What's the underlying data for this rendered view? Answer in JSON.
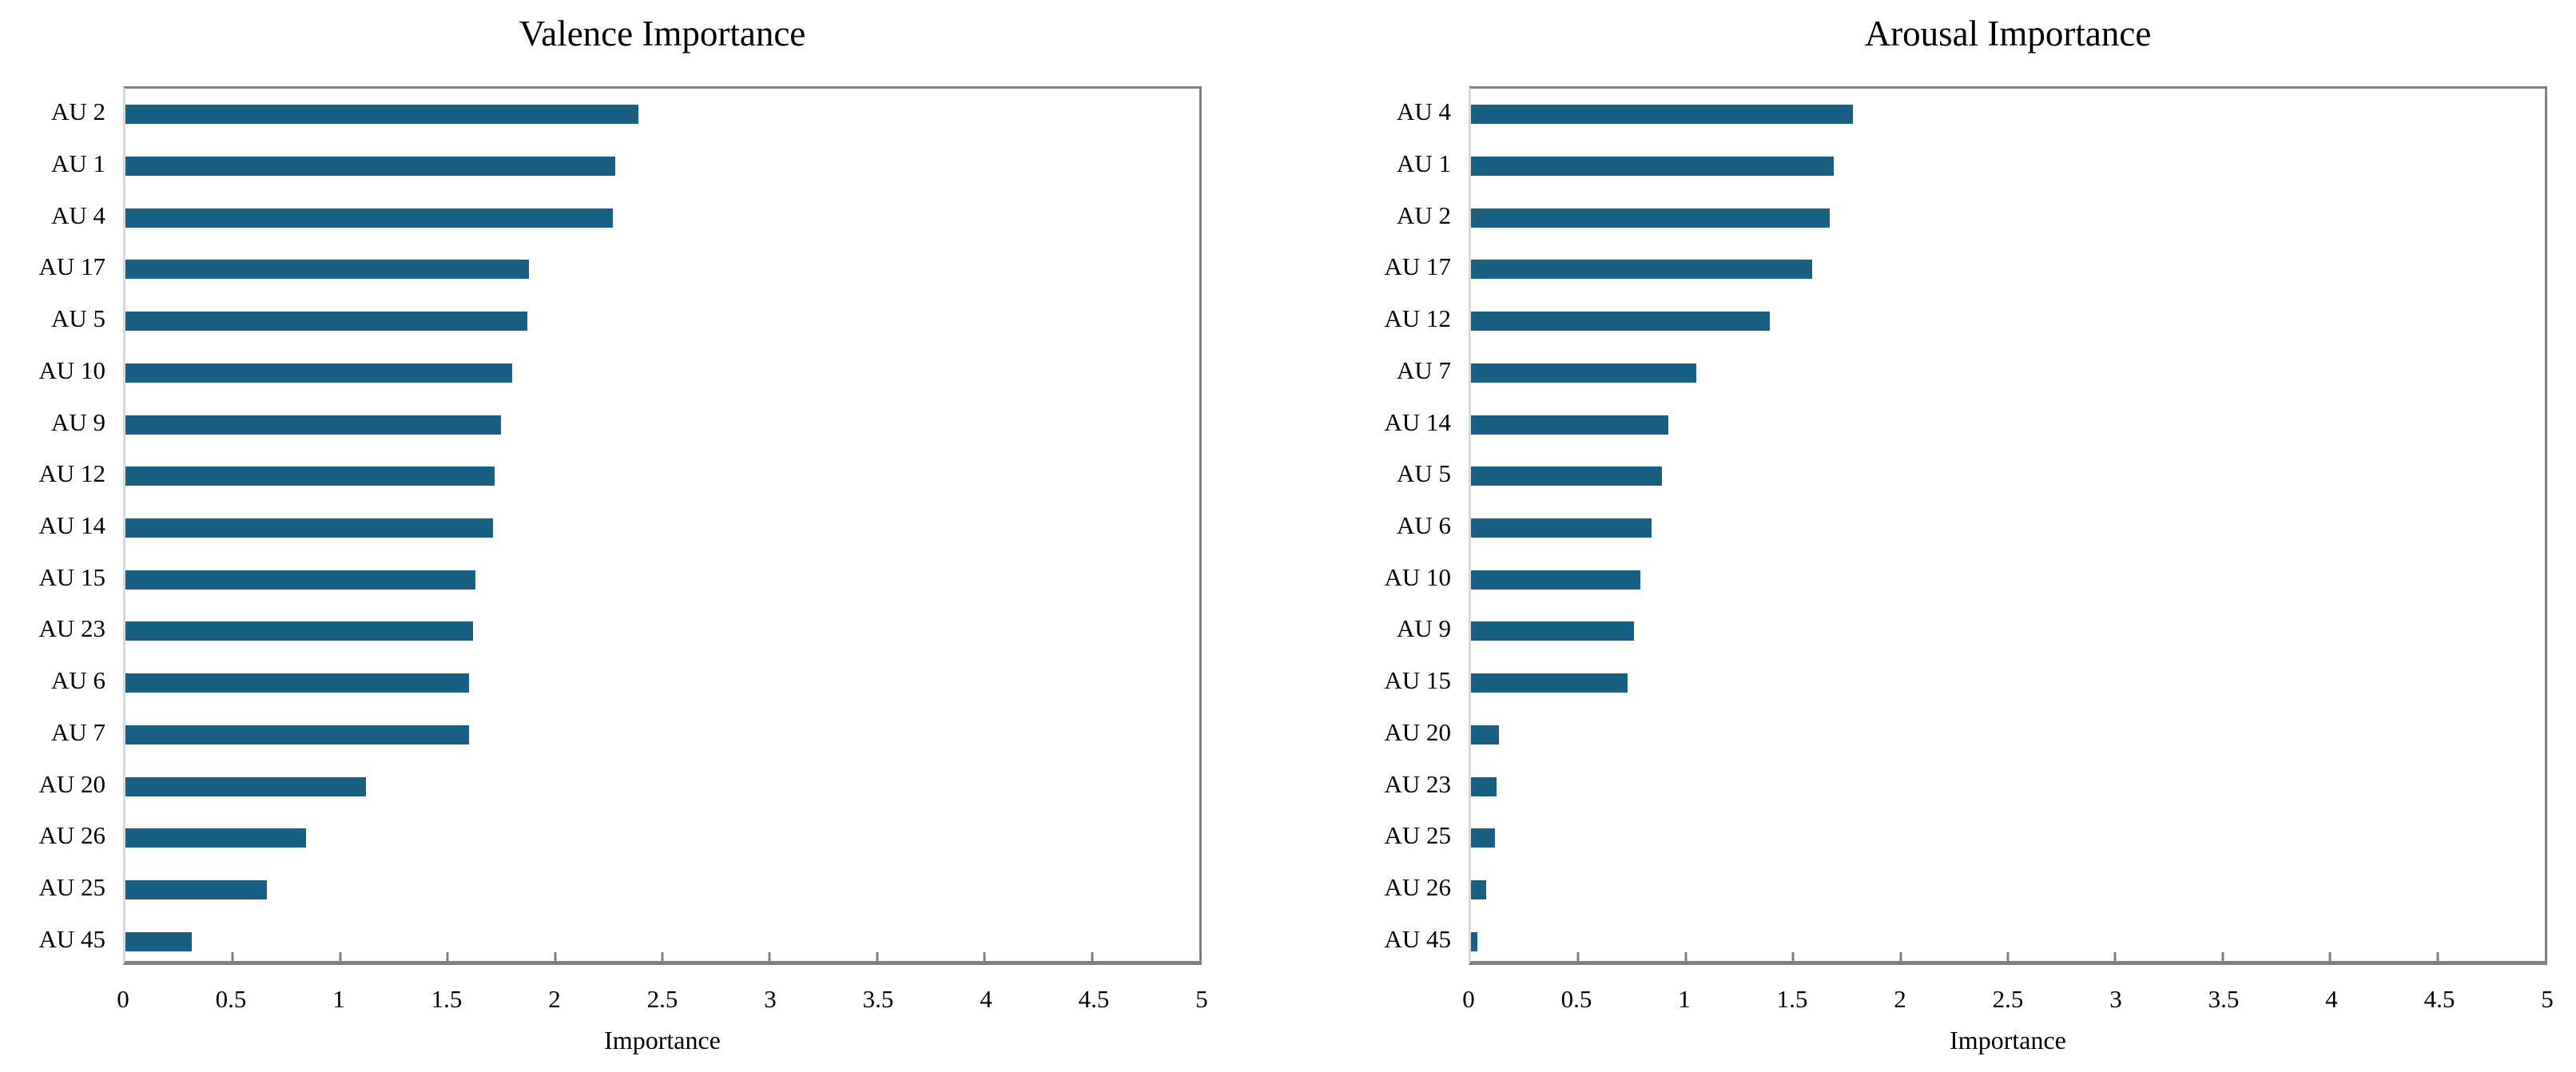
{
  "colors": {
    "bar": "#175f83",
    "plot_border": "#808080",
    "category_axis": "#d9d9d9",
    "text": "#000000"
  },
  "chart_data": [
    {
      "type": "bar",
      "orientation": "horizontal",
      "title": "Valence Importance",
      "xlabel": "Importance",
      "xlim": [
        0,
        5
      ],
      "xticks": [
        0,
        0.5,
        1,
        1.5,
        2,
        2.5,
        3,
        3.5,
        4,
        4.5,
        5
      ],
      "xtick_labels": [
        "0",
        "0.5",
        "1",
        "1.5",
        "2",
        "2.5",
        "3",
        "3.5",
        "4",
        "4.5",
        "5"
      ],
      "grid": false,
      "legend": false,
      "categories": [
        "AU 2",
        "AU 1",
        "AU 4",
        "AU 17",
        "AU 5",
        "AU 10",
        "AU 9",
        "AU 12",
        "AU 14",
        "AU 15",
        "AU 23",
        "AU 6",
        "AU 7",
        "AU 20",
        "AU 26",
        "AU 25",
        "AU 45"
      ],
      "values": [
        2.39,
        2.28,
        2.27,
        1.88,
        1.87,
        1.8,
        1.75,
        1.72,
        1.71,
        1.63,
        1.62,
        1.6,
        1.6,
        1.12,
        0.84,
        0.66,
        0.31
      ]
    },
    {
      "type": "bar",
      "orientation": "horizontal",
      "title": "Arousal Importance",
      "xlabel": "Importance",
      "xlim": [
        0,
        5
      ],
      "xticks": [
        0,
        0.5,
        1,
        1.5,
        2,
        2.5,
        3,
        3.5,
        4,
        4.5,
        5
      ],
      "xtick_labels": [
        "0",
        "0.5",
        "1",
        "1.5",
        "2",
        "2.5",
        "3",
        "3.5",
        "4",
        "4.5",
        "5"
      ],
      "grid": false,
      "legend": false,
      "categories": [
        "AU 4",
        "AU 1",
        "AU 2",
        "AU 17",
        "AU 12",
        "AU 7",
        "AU 14",
        "AU 5",
        "AU 6",
        "AU 10",
        "AU 9",
        "AU 15",
        "AU 20",
        "AU 23",
        "AU 25",
        "AU 26",
        "AU 45"
      ],
      "values": [
        1.78,
        1.69,
        1.67,
        1.59,
        1.39,
        1.05,
        0.92,
        0.89,
        0.84,
        0.79,
        0.76,
        0.73,
        0.13,
        0.12,
        0.11,
        0.07,
        0.03
      ]
    }
  ]
}
